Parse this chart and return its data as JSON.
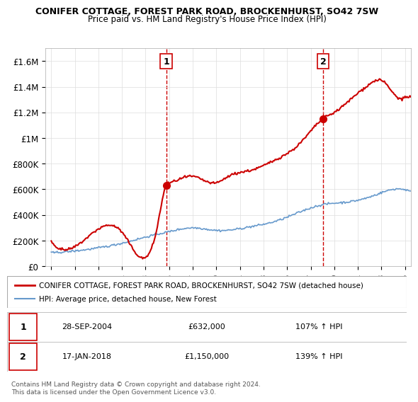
{
  "title1": "CONIFER COTTAGE, FOREST PARK ROAD, BROCKENHURST, SO42 7SW",
  "title2": "Price paid vs. HM Land Registry's House Price Index (HPI)",
  "legend_line1": "CONIFER COTTAGE, FOREST PARK ROAD, BROCKENHURST, SO42 7SW (detached house)",
  "legend_line2": "HPI: Average price, detached house, New Forest",
  "table_row1": [
    "1",
    "28-SEP-2004",
    "£632,000",
    "107% ↑ HPI"
  ],
  "table_row2": [
    "2",
    "17-JAN-2018",
    "£1,150,000",
    "139% ↑ HPI"
  ],
  "footnote": "Contains HM Land Registry data © Crown copyright and database right 2024.\nThis data is licensed under the Open Government Licence v3.0.",
  "red_color": "#cc0000",
  "blue_color": "#6699cc",
  "marker1_x": 2004.75,
  "marker1_y": 632000,
  "marker2_x": 2018.05,
  "marker2_y": 1150000,
  "vline1_x": 2004.75,
  "vline2_x": 2018.05,
  "ylim": [
    0,
    1700000
  ],
  "xlim_start": 1994.5,
  "xlim_end": 2025.5,
  "yticks": [
    0,
    200000,
    400000,
    600000,
    800000,
    1000000,
    1200000,
    1400000,
    1600000
  ],
  "ytick_labels": [
    "£0",
    "£200K",
    "£400K",
    "£600K",
    "£800K",
    "£1M",
    "£1.2M",
    "£1.4M",
    "£1.6M"
  ],
  "xticks": [
    1995,
    1997,
    1999,
    2001,
    2003,
    2005,
    2007,
    2009,
    2011,
    2013,
    2015,
    2017,
    2019,
    2021,
    2023,
    2025
  ]
}
